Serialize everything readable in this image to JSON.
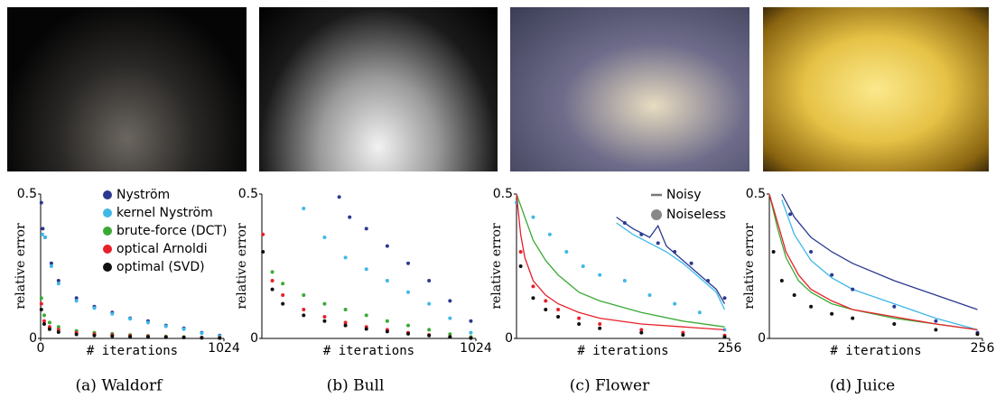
{
  "chart_data": [
    {
      "type": "scatter",
      "caption": "(a) Waldorf",
      "xlabel": "# iterations",
      "ylabel": "relative error",
      "xlim": [
        0,
        1024
      ],
      "ylim": [
        0,
        0.5
      ],
      "xticks": [
        0,
        1024
      ],
      "yticks": [
        0,
        0.5
      ],
      "legend": "upper right",
      "series": [
        {
          "name": "Nyström",
          "color": "#2b3990",
          "style": "dots",
          "x": [
            4,
            12,
            25,
            60,
            100,
            200,
            300,
            400,
            500,
            600,
            700,
            800,
            900,
            1000
          ],
          "values": [
            0.47,
            0.38,
            0.35,
            0.26,
            0.2,
            0.14,
            0.11,
            0.09,
            0.07,
            0.06,
            0.045,
            0.035,
            0.02,
            0.01
          ]
        },
        {
          "name": "kernel Nyström",
          "color": "#3fb8e8",
          "style": "dots",
          "x": [
            10,
            25,
            60,
            100,
            200,
            300,
            400,
            500,
            600,
            700,
            800,
            900,
            1000
          ],
          "values": [
            0.36,
            0.35,
            0.25,
            0.19,
            0.13,
            0.105,
            0.085,
            0.068,
            0.055,
            0.042,
            0.032,
            0.018,
            0.008
          ]
        },
        {
          "name": "brute-force (DCT)",
          "color": "#3aaa35",
          "style": "dots",
          "x": [
            4,
            20,
            50,
            100,
            200,
            300,
            400,
            500,
            600,
            700,
            800,
            900,
            1000
          ],
          "values": [
            0.14,
            0.08,
            0.055,
            0.04,
            0.026,
            0.02,
            0.016,
            0.012,
            0.009,
            0.007,
            0.005,
            0.003,
            0.002
          ]
        },
        {
          "name": "optical Arnoldi",
          "color": "#e8202a",
          "style": "dots",
          "x": [
            4,
            20,
            50,
            100,
            200,
            300,
            400,
            500,
            600,
            700,
            800,
            900,
            1000
          ],
          "values": [
            0.12,
            0.06,
            0.04,
            0.03,
            0.02,
            0.015,
            0.012,
            0.009,
            0.007,
            0.005,
            0.004,
            0.003,
            0.002
          ]
        },
        {
          "name": "optimal (SVD)",
          "color": "#111111",
          "style": "dots",
          "x": [
            4,
            20,
            50,
            100,
            200,
            300,
            400,
            500,
            600,
            700,
            800,
            900,
            1000
          ],
          "values": [
            0.1,
            0.05,
            0.032,
            0.022,
            0.014,
            0.01,
            0.008,
            0.006,
            0.005,
            0.004,
            0.003,
            0.002,
            0.001
          ]
        }
      ]
    },
    {
      "type": "scatter",
      "caption": "(b) Bull",
      "ylabel": "relative error",
      "xlabel": "# iterations",
      "xlim": [
        0,
        1024
      ],
      "ylim": [
        0,
        0.5
      ],
      "xticks": [
        1024
      ],
      "yticks": [
        0,
        0.5
      ],
      "series": [
        {
          "color": "#2b3990",
          "style": "dots",
          "x": [
            370,
            420,
            500,
            600,
            700,
            800,
            900,
            1000
          ],
          "values": [
            0.49,
            0.42,
            0.38,
            0.32,
            0.26,
            0.2,
            0.13,
            0.06
          ]
        },
        {
          "color": "#3fb8e8",
          "style": "dots",
          "x": [
            200,
            300,
            400,
            500,
            600,
            700,
            800,
            900,
            1000
          ],
          "values": [
            0.45,
            0.35,
            0.28,
            0.24,
            0.2,
            0.16,
            0.12,
            0.07,
            0.02
          ]
        },
        {
          "color": "#3aaa35",
          "style": "dots",
          "x": [
            5,
            50,
            100,
            200,
            300,
            400,
            500,
            600,
            700,
            800,
            900,
            1000
          ],
          "values": [
            0.3,
            0.23,
            0.19,
            0.15,
            0.12,
            0.1,
            0.08,
            0.06,
            0.045,
            0.03,
            0.015,
            0.005
          ]
        },
        {
          "color": "#e8202a",
          "style": "dots",
          "x": [
            5,
            50,
            100,
            200,
            300,
            400,
            500,
            600,
            700,
            800,
            900,
            1000
          ],
          "values": [
            0.36,
            0.2,
            0.15,
            0.1,
            0.075,
            0.055,
            0.04,
            0.03,
            0.02,
            0.012,
            0.006,
            0.002
          ]
        },
        {
          "color": "#111111",
          "style": "dots",
          "x": [
            5,
            50,
            100,
            200,
            300,
            400,
            500,
            600,
            700,
            800,
            900,
            1000
          ],
          "values": [
            0.3,
            0.17,
            0.12,
            0.08,
            0.06,
            0.045,
            0.033,
            0.024,
            0.016,
            0.01,
            0.005,
            0.001
          ]
        }
      ]
    },
    {
      "type": "scatter",
      "caption": "(c) Flower",
      "ylabel": "relative error",
      "xlabel": "# iterations",
      "xlim": [
        0,
        256
      ],
      "ylim": [
        0,
        0.5
      ],
      "xticks": [
        256
      ],
      "yticks": [
        0,
        0.5
      ],
      "style_legend": [
        "Noisy",
        "Noiseless"
      ],
      "series": [
        {
          "color": "#2b3990",
          "style": "line",
          "x": [
            120,
            140,
            160,
            170,
            180,
            200,
            220,
            240,
            250
          ],
          "values": [
            0.42,
            0.38,
            0.35,
            0.39,
            0.32,
            0.27,
            0.22,
            0.17,
            0.12
          ]
        },
        {
          "color": "#3fb8e8",
          "style": "line",
          "x": [
            120,
            140,
            160,
            180,
            200,
            220,
            240,
            250
          ],
          "values": [
            0.4,
            0.36,
            0.33,
            0.3,
            0.26,
            0.21,
            0.16,
            0.1
          ]
        },
        {
          "color": "#2b3990",
          "style": "dots",
          "x": [
            130,
            150,
            170,
            190,
            210,
            230,
            250
          ],
          "values": [
            0.4,
            0.36,
            0.33,
            0.3,
            0.26,
            0.2,
            0.14
          ]
        },
        {
          "color": "#3fb8e8",
          "style": "dots",
          "x": [
            0,
            20,
            40,
            60,
            80,
            100,
            130,
            160,
            190,
            220,
            250
          ],
          "values": [
            0.47,
            0.42,
            0.36,
            0.3,
            0.25,
            0.22,
            0.2,
            0.15,
            0.12,
            0.09,
            0.03
          ]
        },
        {
          "color": "#3aaa35",
          "style": "line",
          "x": [
            0,
            10,
            20,
            35,
            50,
            75,
            100,
            150,
            200,
            250
          ],
          "values": [
            0.5,
            0.42,
            0.34,
            0.27,
            0.22,
            0.16,
            0.13,
            0.09,
            0.06,
            0.04
          ]
        },
        {
          "color": "#e8202a",
          "style": "line",
          "x": [
            0,
            5,
            10,
            20,
            35,
            50,
            75,
            100,
            150,
            200,
            250
          ],
          "values": [
            0.5,
            0.36,
            0.28,
            0.2,
            0.15,
            0.12,
            0.09,
            0.07,
            0.05,
            0.04,
            0.03
          ]
        },
        {
          "color": "#e8202a",
          "style": "dots",
          "x": [
            5,
            20,
            35,
            50,
            75,
            100,
            150,
            200,
            250
          ],
          "values": [
            0.3,
            0.18,
            0.13,
            0.1,
            0.07,
            0.05,
            0.03,
            0.02,
            0.01
          ]
        },
        {
          "color": "#111111",
          "style": "dots",
          "x": [
            5,
            20,
            35,
            50,
            75,
            100,
            150,
            200,
            250
          ],
          "values": [
            0.25,
            0.14,
            0.1,
            0.075,
            0.05,
            0.035,
            0.02,
            0.012,
            0.005
          ]
        }
      ]
    },
    {
      "type": "scatter",
      "caption": "(d) Juice",
      "ylabel": "relative error",
      "xlabel": "# iterations",
      "xlim": [
        0,
        256
      ],
      "ylim": [
        0,
        0.5
      ],
      "xticks": [
        256
      ],
      "yticks": [
        0,
        0.5
      ],
      "series": [
        {
          "color": "#2b3990",
          "style": "line",
          "x": [
            15,
            30,
            50,
            75,
            100,
            150,
            200,
            250
          ],
          "values": [
            0.5,
            0.42,
            0.35,
            0.3,
            0.26,
            0.2,
            0.15,
            0.1
          ]
        },
        {
          "color": "#3fb8e8",
          "style": "line",
          "x": [
            15,
            30,
            50,
            75,
            100,
            150,
            200,
            250
          ],
          "values": [
            0.48,
            0.36,
            0.27,
            0.21,
            0.17,
            0.12,
            0.07,
            0.03
          ]
        },
        {
          "color": "#2b3990",
          "style": "dots",
          "x": [
            25,
            50,
            75,
            100,
            150,
            200,
            250
          ],
          "values": [
            0.43,
            0.3,
            0.22,
            0.17,
            0.11,
            0.06,
            0.02
          ]
        },
        {
          "color": "#3aaa35",
          "style": "line",
          "x": [
            0,
            10,
            20,
            35,
            50,
            75,
            100,
            150,
            200,
            250
          ],
          "values": [
            0.5,
            0.38,
            0.28,
            0.2,
            0.16,
            0.12,
            0.1,
            0.07,
            0.05,
            0.03
          ]
        },
        {
          "color": "#e8202a",
          "style": "line",
          "x": [
            0,
            10,
            20,
            35,
            50,
            75,
            100,
            150,
            200,
            250
          ],
          "values": [
            0.5,
            0.4,
            0.3,
            0.22,
            0.17,
            0.13,
            0.1,
            0.075,
            0.05,
            0.03
          ]
        },
        {
          "color": "#111111",
          "style": "dots",
          "x": [
            5,
            15,
            30,
            50,
            75,
            100,
            150,
            200,
            250
          ],
          "values": [
            0.3,
            0.2,
            0.15,
            0.11,
            0.085,
            0.07,
            0.05,
            0.03,
            0.015
          ]
        }
      ]
    }
  ]
}
